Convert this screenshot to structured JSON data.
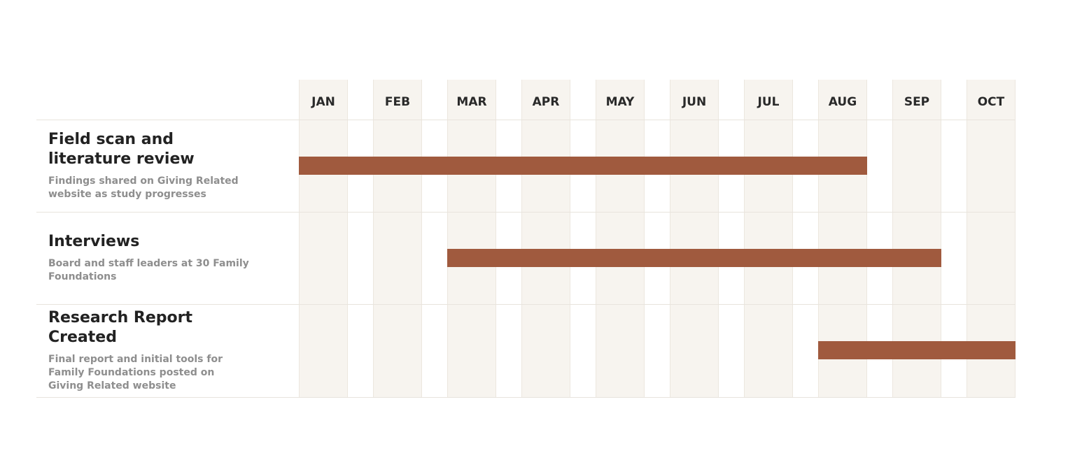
{
  "chart_data": {
    "type": "gantt",
    "months": [
      "JAN",
      "FEB",
      "MAR",
      "APR",
      "MAY",
      "JUN",
      "JUL",
      "AUG",
      "SEP",
      "OCT"
    ],
    "tasks": [
      {
        "title": "Field scan and literature review",
        "description": "Findings shared on Giving Related website as study progresses",
        "start": "JAN",
        "end": "AUG"
      },
      {
        "title": "Interviews",
        "description": "Board and staff leaders at 30 Family Foundations",
        "start": "MAR",
        "end": "SEP"
      },
      {
        "title": "Research Report Created",
        "description": "Final report and initial tools for Family Foundations posted on Giving Related website",
        "start": "AUG",
        "end": "OCT"
      }
    ],
    "colors": {
      "bar": "#a05a3e",
      "month_column": "#f7f4ef",
      "title_text": "#222222",
      "description_text": "#8e8e8e"
    }
  }
}
